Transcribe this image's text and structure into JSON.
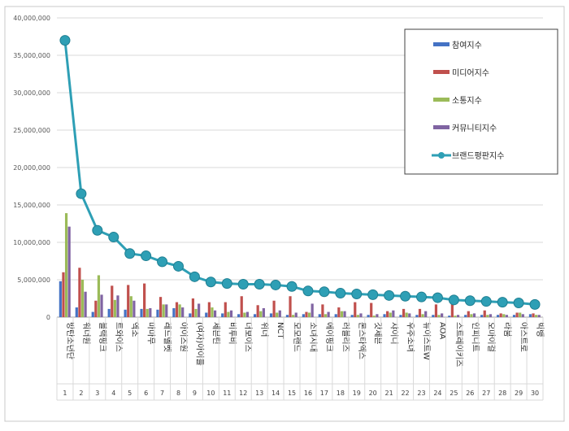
{
  "chart_data": {
    "type": "bar+line",
    "title": "",
    "xlabel": "",
    "ylabel": "",
    "ylim": [
      0,
      40000000
    ],
    "yticks": [
      "0",
      "5,000,000",
      "10,000,000",
      "15,000,000",
      "20,000,000",
      "25,000,000",
      "30,000,000",
      "35,000,000",
      "40,000,000"
    ],
    "grid": true,
    "legend_position": "top-right",
    "ranks": [
      "1",
      "2",
      "3",
      "4",
      "5",
      "6",
      "7",
      "8",
      "9",
      "10",
      "11",
      "12",
      "13",
      "14",
      "15",
      "16",
      "17",
      "18",
      "19",
      "20",
      "21",
      "22",
      "23",
      "24",
      "25",
      "26",
      "27",
      "28",
      "29",
      "30"
    ],
    "categories": [
      "방탄소년단",
      "워너원",
      "블랙핑크",
      "트와이스",
      "엑소",
      "마마무",
      "레드벨벳",
      "아이즈원",
      "(여자)아이들",
      "세븐틴",
      "비투비",
      "더보이즈",
      "위너",
      "NCT",
      "모모랜드",
      "소녀시대",
      "에이핑크",
      "러블리즈",
      "몬스타엑스",
      "갓세븐",
      "샤이니",
      "우주소녀",
      "뉴이스트W",
      "AOA",
      "스트레이키즈",
      "인피니트",
      "오마이걸",
      "라붐",
      "아스트로",
      "빅뱅"
    ],
    "series": [
      {
        "name": "참여지수",
        "kind": "bar",
        "color": "#4472c4",
        "values": [
          4800000,
          1300000,
          700000,
          1100000,
          1000000,
          1100000,
          1000000,
          1200000,
          500000,
          600000,
          500000,
          400000,
          400000,
          500000,
          300000,
          400000,
          400000,
          400000,
          300000,
          300000,
          400000,
          300000,
          300000,
          300000,
          200000,
          300000,
          300000,
          300000,
          300000,
          400000
        ]
      },
      {
        "name": "미디어지수",
        "kind": "bar",
        "color": "#c0504d",
        "values": [
          6000000,
          6600000,
          2200000,
          4200000,
          4300000,
          4500000,
          2700000,
          2000000,
          2500000,
          2000000,
          2000000,
          2800000,
          1600000,
          2200000,
          2800000,
          700000,
          1700000,
          1300000,
          2000000,
          1900000,
          800000,
          1100000,
          1100000,
          1700000,
          1800000,
          800000,
          900000,
          500000,
          600000,
          500000
        ]
      },
      {
        "name": "소통지수",
        "kind": "bar",
        "color": "#9bbb59",
        "values": [
          13900000,
          5000000,
          5600000,
          2300000,
          2800000,
          1100000,
          1700000,
          1700000,
          1100000,
          1300000,
          700000,
          600000,
          800000,
          600000,
          300000,
          600000,
          400000,
          800000,
          300000,
          200000,
          600000,
          600000,
          400000,
          300000,
          200000,
          400000,
          300000,
          400000,
          600000,
          300000
        ]
      },
      {
        "name": "커뮤니티지수",
        "kind": "bar",
        "color": "#8064a2",
        "values": [
          12100000,
          3400000,
          3000000,
          2900000,
          2200000,
          1200000,
          1700000,
          1300000,
          1800000,
          900000,
          900000,
          700000,
          1200000,
          900000,
          600000,
          1800000,
          700000,
          800000,
          500000,
          400000,
          900000,
          500000,
          800000,
          500000,
          300000,
          500000,
          400000,
          300000,
          400000,
          300000
        ]
      },
      {
        "name": "브랜드평판지수",
        "kind": "line",
        "color": "#2e9fb5",
        "values": [
          37000000,
          16500000,
          11600000,
          10700000,
          8500000,
          8200000,
          7400000,
          6800000,
          5400000,
          4700000,
          4500000,
          4400000,
          4400000,
          4300000,
          4100000,
          3500000,
          3400000,
          3200000,
          3100000,
          3000000,
          2900000,
          2800000,
          2700000,
          2600000,
          2300000,
          2200000,
          2100000,
          2000000,
          1900000,
          1700000
        ]
      }
    ]
  }
}
